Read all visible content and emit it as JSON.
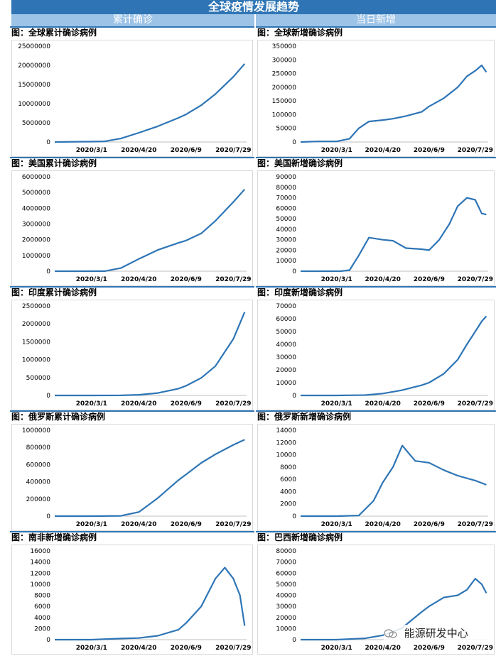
{
  "header": {
    "title": "全球疫情发展趋势",
    "left_label": "累计确诊",
    "right_label": "当日新增"
  },
  "watermark": {
    "text": "能源研发中心",
    "icon": "wechat-icon"
  },
  "colors": {
    "line": "#2e75b6",
    "banner": "#2f75b5",
    "subheader": "#9dc3e6"
  },
  "chart_data": [
    {
      "id": "global-cumulative",
      "type": "line",
      "title": "图：全球累计确诊病例",
      "x_ticks": [
        "2020/3/1",
        "2020/4/20",
        "2020/6/9",
        "2020/7/29"
      ],
      "ylim": [
        0,
        25000000
      ],
      "y_ticks": [
        "0",
        "5000000",
        "10000000",
        "15000000",
        "20000000",
        "25000000"
      ],
      "x": [
        "2020/1/22",
        "2020/2/15",
        "2020/3/1",
        "2020/3/15",
        "2020/4/1",
        "2020/4/20",
        "2020/5/10",
        "2020/6/1",
        "2020/6/9",
        "2020/6/25",
        "2020/7/10",
        "2020/7/29",
        "2020/8/10"
      ],
      "values": [
        0,
        70000,
        90000,
        170000,
        900000,
        2400000,
        4100000,
        6300000,
        7200000,
        9600000,
        12500000,
        17000000,
        20400000
      ]
    },
    {
      "id": "global-daily",
      "type": "line",
      "title": "图：全球新增确诊病例",
      "x_ticks": [
        "2020/3/1",
        "2020/4/20",
        "2020/6/9",
        "2020/7/29"
      ],
      "ylim": [
        0,
        350000
      ],
      "y_ticks": [
        "0",
        "50000",
        "100000",
        "150000",
        "200000",
        "250000",
        "300000",
        "350000"
      ],
      "x": [
        "2020/1/22",
        "2020/2/10",
        "2020/3/1",
        "2020/3/15",
        "2020/3/25",
        "2020/4/5",
        "2020/4/20",
        "2020/5/1",
        "2020/5/15",
        "2020/6/1",
        "2020/6/9",
        "2020/6/25",
        "2020/7/10",
        "2020/7/20",
        "2020/7/29",
        "2020/8/5",
        "2020/8/10"
      ],
      "values": [
        0,
        2000,
        2000,
        12000,
        50000,
        75000,
        80000,
        85000,
        95000,
        110000,
        130000,
        160000,
        200000,
        240000,
        260000,
        280000,
        255000
      ]
    },
    {
      "id": "us-cumulative",
      "type": "line",
      "title": "图：美国累计确诊病例",
      "x_ticks": [
        "2020/3/1",
        "2020/4/20",
        "2020/6/9",
        "2020/7/29"
      ],
      "ylim": [
        0,
        6000000
      ],
      "y_ticks": [
        "0",
        "1000000",
        "2000000",
        "3000000",
        "4000000",
        "5000000",
        "6000000"
      ],
      "x": [
        "2020/1/22",
        "2020/3/1",
        "2020/3/15",
        "2020/4/1",
        "2020/4/20",
        "2020/5/10",
        "2020/6/1",
        "2020/6/9",
        "2020/6/25",
        "2020/7/10",
        "2020/7/29",
        "2020/8/10"
      ],
      "values": [
        0,
        0,
        3000,
        200000,
        780000,
        1350000,
        1800000,
        1950000,
        2400000,
        3200000,
        4400000,
        5200000
      ]
    },
    {
      "id": "us-daily",
      "type": "line",
      "title": "图：美国新增确诊病例",
      "x_ticks": [
        "2020/3/1",
        "2020/4/20",
        "2020/6/9",
        "2020/7/29"
      ],
      "ylim": [
        0,
        90000
      ],
      "y_ticks": [
        "0",
        "10000",
        "20000",
        "30000",
        "40000",
        "50000",
        "60000",
        "70000",
        "80000",
        "90000"
      ],
      "x": [
        "2020/1/22",
        "2020/3/5",
        "2020/3/15",
        "2020/3/25",
        "2020/4/5",
        "2020/4/20",
        "2020/5/1",
        "2020/5/15",
        "2020/6/1",
        "2020/6/9",
        "2020/6/20",
        "2020/7/1",
        "2020/7/10",
        "2020/7/20",
        "2020/7/29",
        "2020/8/5",
        "2020/8/10"
      ],
      "values": [
        0,
        0,
        1000,
        15000,
        32000,
        30000,
        29000,
        22000,
        21000,
        20000,
        30000,
        45000,
        62000,
        70000,
        68000,
        55000,
        54000
      ]
    },
    {
      "id": "india-cumulative",
      "type": "line",
      "title": "图：印度累计确诊病例",
      "x_ticks": [
        "2020/3/1",
        "2020/4/20",
        "2020/6/9",
        "2020/7/29"
      ],
      "ylim": [
        0,
        2500000
      ],
      "y_ticks": [
        "0",
        "500000",
        "1000000",
        "1500000",
        "2000000",
        "2500000"
      ],
      "x": [
        "2020/1/22",
        "2020/3/1",
        "2020/4/1",
        "2020/4/20",
        "2020/5/10",
        "2020/6/1",
        "2020/6/9",
        "2020/6/25",
        "2020/7/10",
        "2020/7/29",
        "2020/8/10"
      ],
      "values": [
        0,
        0,
        2000,
        18000,
        67000,
        190000,
        270000,
        490000,
        820000,
        1580000,
        2330000
      ]
    },
    {
      "id": "india-daily",
      "type": "line",
      "title": "图：印度新增确诊病例",
      "x_ticks": [
        "2020/3/1",
        "2020/4/20",
        "2020/6/9",
        "2020/7/29"
      ],
      "ylim": [
        0,
        70000
      ],
      "y_ticks": [
        "0",
        "10000",
        "20000",
        "30000",
        "40000",
        "50000",
        "60000",
        "70000"
      ],
      "x": [
        "2020/1/22",
        "2020/3/1",
        "2020/4/1",
        "2020/4/20",
        "2020/5/10",
        "2020/6/1",
        "2020/6/9",
        "2020/6/25",
        "2020/7/10",
        "2020/7/20",
        "2020/7/29",
        "2020/8/5",
        "2020/8/10"
      ],
      "values": [
        0,
        0,
        300,
        1500,
        4000,
        8000,
        10000,
        17000,
        28000,
        40000,
        50000,
        58000,
        62000
      ]
    },
    {
      "id": "russia-cumulative",
      "type": "line",
      "title": "图：俄罗斯累计确诊病例",
      "x_ticks": [
        "2020/3/1",
        "2020/4/20",
        "2020/6/9",
        "2020/7/29"
      ],
      "ylim": [
        0,
        1000000
      ],
      "y_ticks": [
        "0",
        "200000",
        "400000",
        "600000",
        "800000",
        "1000000"
      ],
      "x": [
        "2020/1/22",
        "2020/3/1",
        "2020/4/1",
        "2020/4/20",
        "2020/5/10",
        "2020/6/1",
        "2020/6/9",
        "2020/6/25",
        "2020/7/10",
        "2020/7/29",
        "2020/8/10"
      ],
      "values": [
        0,
        0,
        3000,
        48000,
        210000,
        420000,
        485000,
        620000,
        720000,
        830000,
        890000
      ]
    },
    {
      "id": "russia-daily",
      "type": "line",
      "title": "图：俄罗斯新增确诊病例",
      "x_ticks": [
        "2020/3/1",
        "2020/4/20",
        "2020/6/9",
        "2020/7/29"
      ],
      "ylim": [
        0,
        14000
      ],
      "y_ticks": [
        "0",
        "2000",
        "4000",
        "6000",
        "8000",
        "10000",
        "12000",
        "14000"
      ],
      "x": [
        "2020/1/22",
        "2020/3/1",
        "2020/3/25",
        "2020/4/10",
        "2020/4/20",
        "2020/5/1",
        "2020/5/11",
        "2020/5/25",
        "2020/6/9",
        "2020/6/25",
        "2020/7/10",
        "2020/7/29",
        "2020/8/10"
      ],
      "values": [
        0,
        0,
        100,
        2500,
        5500,
        8000,
        11500,
        9000,
        8700,
        7500,
        6600,
        5800,
        5100
      ]
    },
    {
      "id": "southafrica-daily",
      "type": "line",
      "title": "图：南非新增确诊病例",
      "x_ticks": [
        "2020/3/1",
        "2020/4/20",
        "2020/6/9",
        "2020/7/29"
      ],
      "ylim": [
        0,
        16000
      ],
      "y_ticks": [
        "0",
        "2000",
        "4000",
        "6000",
        "8000",
        "10000",
        "12000",
        "14000",
        "16000"
      ],
      "x": [
        "2020/1/22",
        "2020/3/1",
        "2020/4/1",
        "2020/4/20",
        "2020/5/10",
        "2020/6/1",
        "2020/6/9",
        "2020/6/25",
        "2020/7/10",
        "2020/7/20",
        "2020/7/29",
        "2020/8/5",
        "2020/8/10"
      ],
      "values": [
        0,
        0,
        200,
        300,
        700,
        1800,
        3000,
        6000,
        11000,
        13000,
        11000,
        8000,
        2500
      ]
    },
    {
      "id": "brazil-daily",
      "type": "line",
      "title": "图：巴西新增确诊病例",
      "x_ticks": [
        "2020/3/1",
        "2020/4/20",
        "2020/6/9",
        "2020/7/29"
      ],
      "ylim": [
        0,
        80000
      ],
      "y_ticks": [
        "0",
        "10000",
        "20000",
        "30000",
        "40000",
        "50000",
        "60000",
        "70000",
        "80000"
      ],
      "x": [
        "2020/1/22",
        "2020/3/1",
        "2020/4/1",
        "2020/4/20",
        "2020/5/10",
        "2020/6/1",
        "2020/6/9",
        "2020/6/25",
        "2020/7/10",
        "2020/7/20",
        "2020/7/29",
        "2020/8/5",
        "2020/8/10"
      ],
      "values": [
        0,
        0,
        1200,
        4000,
        10000,
        25000,
        30000,
        38000,
        40000,
        45000,
        55000,
        50000,
        42000
      ]
    }
  ]
}
